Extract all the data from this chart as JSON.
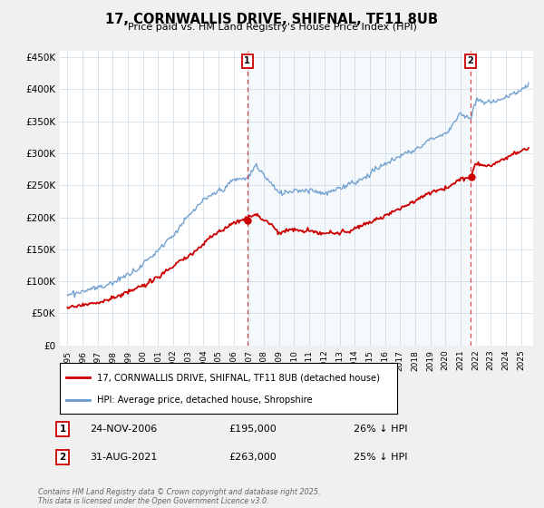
{
  "title": "17, CORNWALLIS DRIVE, SHIFNAL, TF11 8UB",
  "subtitle": "Price paid vs. HM Land Registry's House Price Index (HPI)",
  "red_label": "17, CORNWALLIS DRIVE, SHIFNAL, TF11 8UB (detached house)",
  "blue_label": "HPI: Average price, detached house, Shropshire",
  "red_color": "#cc0000",
  "blue_color": "#6699cc",
  "blue_fill": "#dce9f5",
  "marker1_date": "24-NOV-2006",
  "marker1_price": "£195,000",
  "marker1_pct": "26% ↓ HPI",
  "marker1_x": 2006.9,
  "marker1_y": 195000,
  "marker2_date": "31-AUG-2021",
  "marker2_price": "£263,000",
  "marker2_pct": "25% ↓ HPI",
  "marker2_x": 2021.67,
  "marker2_y": 263000,
  "annotation_text": "Contains HM Land Registry data © Crown copyright and database right 2025.\nThis data is licensed under the Open Government Licence v3.0.",
  "ylim": [
    0,
    460000
  ],
  "yticks": [
    0,
    50000,
    100000,
    150000,
    200000,
    250000,
    300000,
    350000,
    400000,
    450000
  ],
  "ytick_labels": [
    "£0",
    "£50K",
    "£100K",
    "£150K",
    "£200K",
    "£250K",
    "£300K",
    "£350K",
    "£400K",
    "£450K"
  ],
  "xlim": [
    1994.5,
    2025.8
  ],
  "xticks": [
    1995,
    1996,
    1997,
    1998,
    1999,
    2000,
    2001,
    2002,
    2003,
    2004,
    2005,
    2006,
    2007,
    2008,
    2009,
    2010,
    2011,
    2012,
    2013,
    2014,
    2015,
    2016,
    2017,
    2018,
    2019,
    2020,
    2021,
    2022,
    2023,
    2024,
    2025
  ],
  "background_color": "#f0f0f0",
  "plot_bg": "#ffffff",
  "grid_color": "#c8d8e8"
}
